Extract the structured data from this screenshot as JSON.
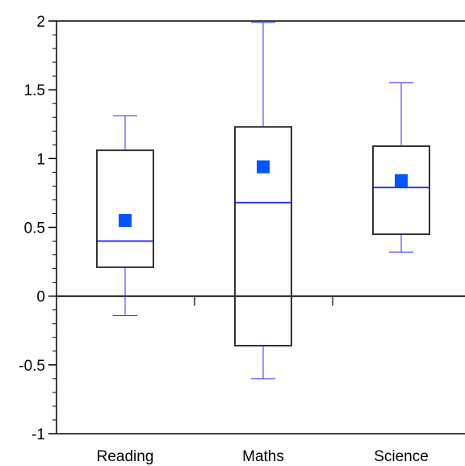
{
  "chart_data": {
    "type": "boxplot",
    "title": "",
    "xlabel": "",
    "ylabel": "",
    "categories": [
      "Reading",
      "Maths",
      "Science"
    ],
    "ylim": [
      -1,
      2
    ],
    "yticks": [
      -1,
      -0.5,
      0,
      0.5,
      1,
      1.5,
      2
    ],
    "ytick_labels": [
      "-1",
      "-0.5",
      "0",
      "0.5",
      "1",
      "1.5",
      "2"
    ],
    "zero_line": true,
    "grid": false,
    "legend": "none",
    "boxes": [
      {
        "category": "Reading",
        "whisker_low": -0.14,
        "q1": 0.21,
        "median": 0.4,
        "q3": 1.06,
        "whisker_high": 1.31,
        "mean": 0.55
      },
      {
        "category": "Maths",
        "whisker_low": -0.6,
        "q1": -0.36,
        "median": 0.68,
        "q3": 1.23,
        "whisker_high": 1.99,
        "mean": 0.94
      },
      {
        "category": "Science",
        "whisker_low": 0.32,
        "q1": 0.45,
        "median": 0.79,
        "q3": 1.09,
        "whisker_high": 1.55,
        "mean": 0.84
      }
    ],
    "colors": {
      "box_outline": "#333333",
      "median_whisker": "#3333ff",
      "mean_marker": "#0055ff",
      "axis": "#000000"
    }
  }
}
